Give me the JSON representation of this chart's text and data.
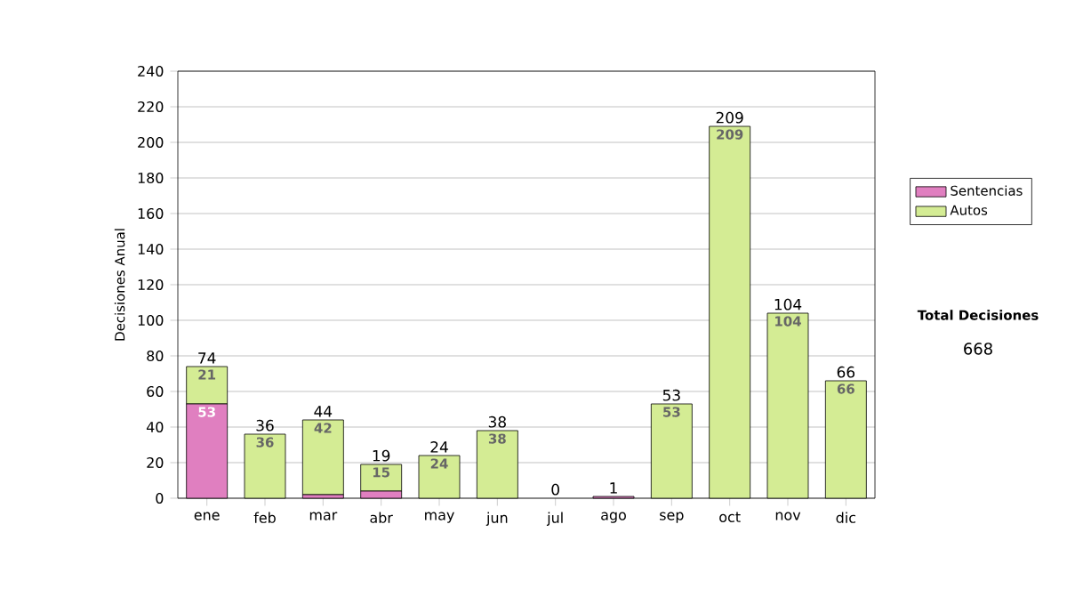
{
  "chart_data": {
    "type": "bar",
    "stacked": true,
    "ylabel": "Decisiones Anual",
    "categories": [
      "ene",
      "feb",
      "mar",
      "abr",
      "may",
      "jun",
      "jul",
      "ago",
      "sep",
      "oct",
      "nov",
      "dic"
    ],
    "series": [
      {
        "name": "Sentencias",
        "color": "#e07fc0",
        "values": [
          53,
          0,
          2,
          4,
          0,
          0,
          0,
          1,
          0,
          0,
          0,
          0
        ],
        "value_labels": [
          "53",
          null,
          null,
          null,
          null,
          null,
          null,
          null,
          null,
          null,
          null,
          null
        ]
      },
      {
        "name": "Autos",
        "color": "#d4ec94",
        "values": [
          21,
          36,
          42,
          15,
          24,
          38,
          0,
          0,
          53,
          209,
          104,
          66
        ],
        "value_labels": [
          "21",
          "36",
          "42",
          "15",
          "24",
          "38",
          null,
          null,
          "53",
          "209",
          "104",
          "66"
        ]
      }
    ],
    "totals": [
      "74",
      "36",
      "44",
      "19",
      "24",
      "38",
      "0",
      "1",
      "53",
      "209",
      "104",
      "66"
    ],
    "ylim": [
      0,
      240
    ],
    "yticks": [
      0,
      20,
      40,
      60,
      80,
      100,
      120,
      140,
      160,
      180,
      200,
      220,
      240
    ],
    "grid": "y",
    "legend": "right",
    "annotations": [
      "Total Decisiones",
      "668"
    ]
  }
}
